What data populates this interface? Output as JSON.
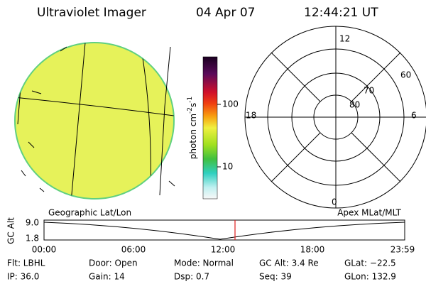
{
  "header": {
    "title": "Ultraviolet Imager",
    "date": "04 Apr 07",
    "time": "12:44:21 UT"
  },
  "colorbar": {
    "label": [
      "photon cm",
      "-2",
      "s",
      "-1"
    ],
    "ticks": [
      "100",
      "10"
    ]
  },
  "polar": {
    "labels": [
      "12",
      "60",
      "70",
      "80",
      "18",
      "6",
      "0"
    ]
  },
  "timeline": {
    "left_label": "Geographic Lat/Lon",
    "right_label": "Apex MLat/MLT",
    "axis_label": "GC Alt",
    "yticks": [
      "9.0",
      "1.8"
    ],
    "xticks": [
      "00:00",
      "06:00",
      "12:00",
      "18:00",
      "23:59"
    ]
  },
  "info": [
    [
      "Flt: LBHL",
      "IP: 36.0"
    ],
    [
      "Door: Open",
      "Gain: 14"
    ],
    [
      "Mode: Normal",
      "Dsp: 0.7"
    ],
    [
      "GC Alt: 3.4 Re",
      "Seq: 39"
    ],
    [
      "GLat: −22.5",
      "GLon: 132.9"
    ]
  ]
}
